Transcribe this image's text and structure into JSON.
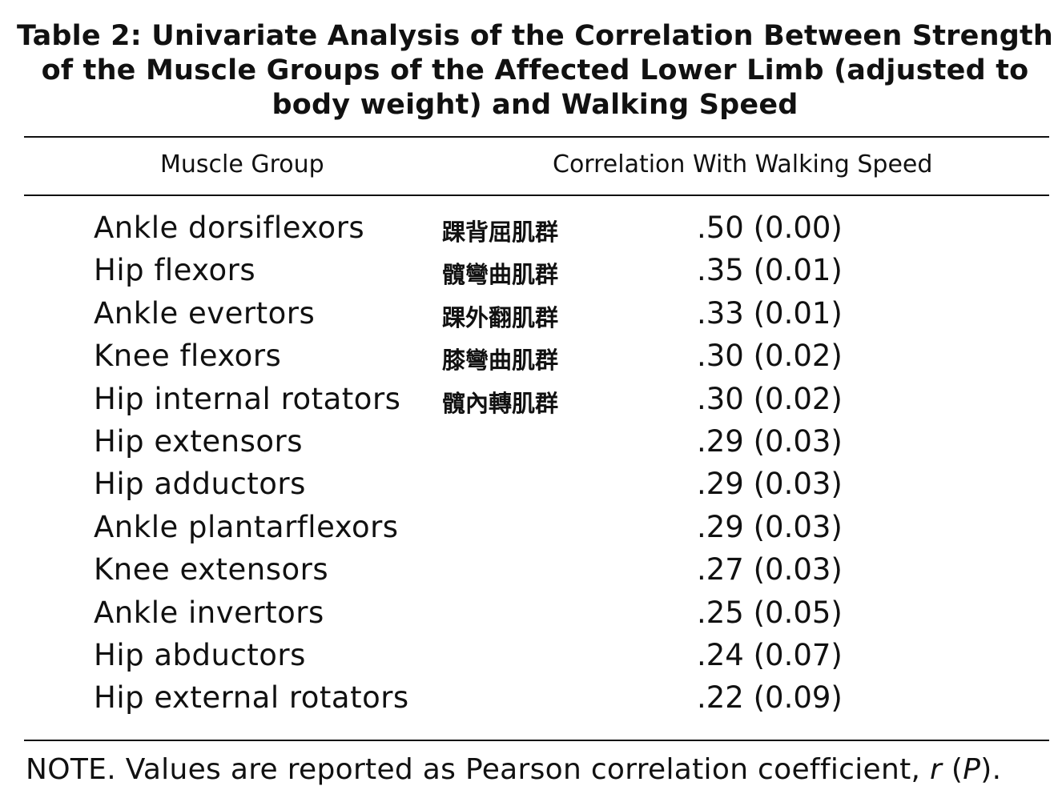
{
  "title": {
    "line1": "Table 2: Univariate Analysis of the Correlation Between Strength",
    "line2": "of the Muscle Groups of the Affected Lower Limb (adjusted to",
    "line3": "body weight) and Walking Speed"
  },
  "columns": {
    "muscle_group": "Muscle Group",
    "correlation": "Correlation With Walking Speed"
  },
  "rows": [
    {
      "muscle": "Ankle dorsiflexors",
      "annotation": "踝背屈肌群",
      "value": ".50 (0.00)"
    },
    {
      "muscle": "Hip flexors",
      "annotation": "髖彎曲肌群",
      "value": ".35 (0.01)"
    },
    {
      "muscle": "Ankle evertors",
      "annotation": "踝外翻肌群",
      "value": ".33 (0.01)"
    },
    {
      "muscle": "Knee flexors",
      "annotation": "膝彎曲肌群",
      "value": ".30 (0.02)"
    },
    {
      "muscle": "Hip internal rotators",
      "annotation": "髖內轉肌群",
      "value": ".30 (0.02)"
    },
    {
      "muscle": "Hip extensors",
      "annotation": "",
      "value": ".29 (0.03)"
    },
    {
      "muscle": "Hip adductors",
      "annotation": "",
      "value": ".29 (0.03)"
    },
    {
      "muscle": "Ankle plantarflexors",
      "annotation": "",
      "value": ".29 (0.03)"
    },
    {
      "muscle": "Knee extensors",
      "annotation": "",
      "value": ".27 (0.03)"
    },
    {
      "muscle": "Ankle invertors",
      "annotation": "",
      "value": ".25 (0.05)"
    },
    {
      "muscle": "Hip abductors",
      "annotation": "",
      "value": ".24 (0.07)"
    },
    {
      "muscle": "Hip external rotators",
      "annotation": "",
      "value": ".22 (0.09)"
    }
  ],
  "note": {
    "prefix": "NOTE. Values are reported as Pearson correlation coefficient, ",
    "r": "r",
    "open_paren": " (",
    "p": "P",
    "suffix": ")."
  }
}
